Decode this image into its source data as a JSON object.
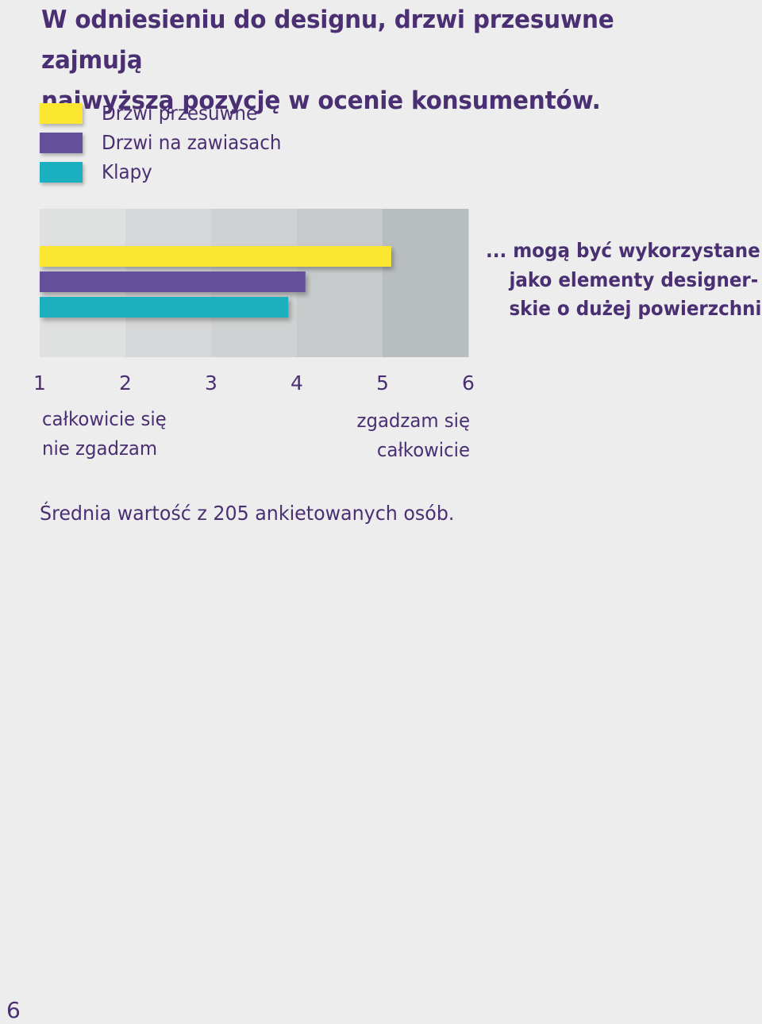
{
  "heading": {
    "line1": "W odniesieniu do designu, drzwi przesuwne zajmują",
    "line2": "najwyższą pozycję w ocenie konsumentów."
  },
  "annotation": {
    "line1": "... mogą być wykorzystane",
    "line2": "jako elementy designer-",
    "line3": "skie o dużej powierzchni."
  },
  "scale_notes": {
    "low": [
      "całkowicie się",
      "nie zgadzam"
    ],
    "high": [
      "zgadzam się",
      "całkowicie"
    ]
  },
  "footnote": "Średnia wartość z 205 ankietowanych osób.",
  "page_number": "6",
  "chart_data": {
    "type": "bar",
    "orientation": "horizontal",
    "xlim": [
      1,
      6
    ],
    "x_ticks": [
      "1",
      "2",
      "3",
      "4",
      "5",
      "6"
    ],
    "legend_position": "top-left",
    "series": [
      {
        "name": "Drzwi przesuwne",
        "value": 5.1,
        "color": "#fbe730"
      },
      {
        "name": "Drzwi na zawiasach",
        "value": 4.1,
        "color": "#634f9a"
      },
      {
        "name": "Klapy",
        "value": 3.9,
        "color": "#1bb0bf"
      }
    ],
    "band_colors": [
      "#dfe0e0",
      "#d6d7d8",
      "#cfd1d2",
      "#c7cacb",
      "#b8bdbf"
    ]
  }
}
